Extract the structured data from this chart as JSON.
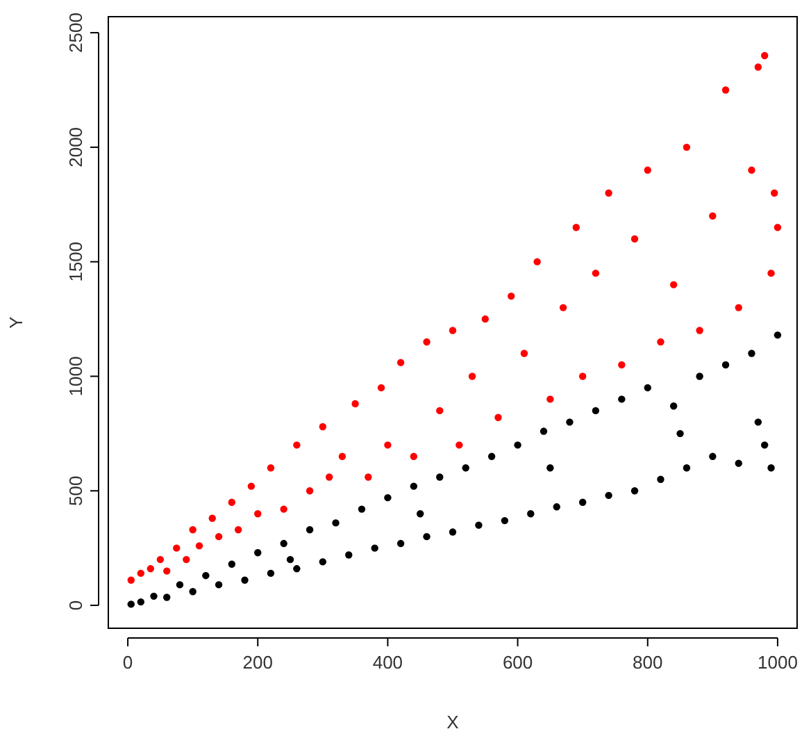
{
  "chart_data": {
    "type": "scatter",
    "xlabel": "X",
    "ylabel": "Y",
    "xlim": [
      -30,
      1030
    ],
    "ylim": [
      -100,
      2570
    ],
    "xticks": [
      0,
      200,
      400,
      600,
      800,
      1000
    ],
    "yticks": [
      0,
      500,
      1000,
      1500,
      2000,
      2500
    ],
    "grid": false,
    "marker": "circle",
    "series": [
      {
        "color": "#ff0000",
        "x": [
          5,
          20,
          35,
          50,
          60,
          75,
          90,
          100,
          110,
          130,
          140,
          160,
          170,
          190,
          200,
          220,
          240,
          260,
          280,
          300,
          310,
          330,
          350,
          370,
          390,
          400,
          420,
          440,
          460,
          480,
          500,
          510,
          530,
          550,
          570,
          590,
          610,
          630,
          650,
          670,
          690,
          700,
          720,
          740,
          760,
          780,
          800,
          820,
          840,
          860,
          880,
          900,
          920,
          940,
          960,
          980,
          990,
          1000,
          970,
          995
        ],
        "values": [
          110,
          140,
          160,
          200,
          150,
          250,
          200,
          330,
          260,
          380,
          300,
          450,
          330,
          520,
          400,
          600,
          420,
          700,
          500,
          780,
          560,
          650,
          880,
          560,
          950,
          700,
          1060,
          650,
          1150,
          850,
          1200,
          700,
          1000,
          1250,
          820,
          1350,
          1100,
          1500,
          900,
          1300,
          1650,
          1000,
          1450,
          1800,
          1050,
          1600,
          1900,
          1150,
          1400,
          2000,
          1200,
          1700,
          2250,
          1300,
          1900,
          2400,
          1450,
          1650,
          2350,
          1800
        ]
      },
      {
        "color": "#000000",
        "x": [
          5,
          20,
          40,
          60,
          80,
          100,
          120,
          140,
          160,
          180,
          200,
          220,
          240,
          260,
          280,
          300,
          320,
          340,
          360,
          380,
          400,
          420,
          440,
          460,
          480,
          500,
          520,
          540,
          560,
          580,
          600,
          620,
          640,
          660,
          680,
          700,
          720,
          740,
          760,
          780,
          800,
          820,
          840,
          860,
          880,
          900,
          920,
          940,
          960,
          980,
          1000,
          990,
          970,
          850,
          650,
          450,
          250
        ],
        "values": [
          5,
          15,
          40,
          35,
          90,
          60,
          130,
          90,
          180,
          110,
          230,
          140,
          270,
          160,
          330,
          190,
          360,
          220,
          420,
          250,
          470,
          270,
          520,
          300,
          560,
          320,
          600,
          350,
          650,
          370,
          700,
          400,
          760,
          430,
          800,
          450,
          850,
          480,
          900,
          500,
          950,
          550,
          870,
          600,
          1000,
          650,
          1050,
          620,
          1100,
          700,
          1180,
          600,
          800,
          750,
          600,
          400,
          200
        ]
      }
    ]
  }
}
